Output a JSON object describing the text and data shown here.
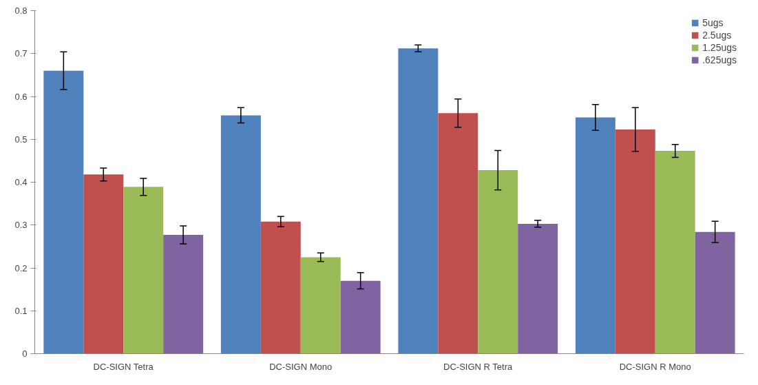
{
  "chart_data": {
    "type": "bar",
    "categories": [
      "DC-SIGN Tetra",
      "DC-SIGN Mono",
      "DC-SIGN R Tetra",
      "DC-SIGN R Mono"
    ],
    "series": [
      {
        "name": "5ugs",
        "color": "#4f81bd",
        "values": [
          0.66,
          0.556,
          0.712,
          0.551
        ],
        "errors": [
          0.044,
          0.018,
          0.008,
          0.03
        ]
      },
      {
        "name": "2.5ugs",
        "color": "#c0504d",
        "values": [
          0.418,
          0.308,
          0.561,
          0.523
        ],
        "errors": [
          0.015,
          0.012,
          0.033,
          0.051
        ]
      },
      {
        "name": "1.25ugs",
        "color": "#9bbb59",
        "values": [
          0.389,
          0.225,
          0.428,
          0.473
        ],
        "errors": [
          0.02,
          0.01,
          0.046,
          0.015
        ]
      },
      {
        "name": ".625ugs",
        "color": "#8064a2",
        "values": [
          0.277,
          0.17,
          0.303,
          0.284
        ],
        "errors": [
          0.021,
          0.019,
          0.008,
          0.025
        ]
      }
    ],
    "ylim": [
      0,
      0.8
    ],
    "yticks": [
      {
        "value": 0,
        "label": "0"
      },
      0.1,
      0.2,
      0.3,
      0.4,
      0.5,
      0.6,
      0.7,
      0.8
    ],
    "grid": false,
    "legend": "top right"
  }
}
